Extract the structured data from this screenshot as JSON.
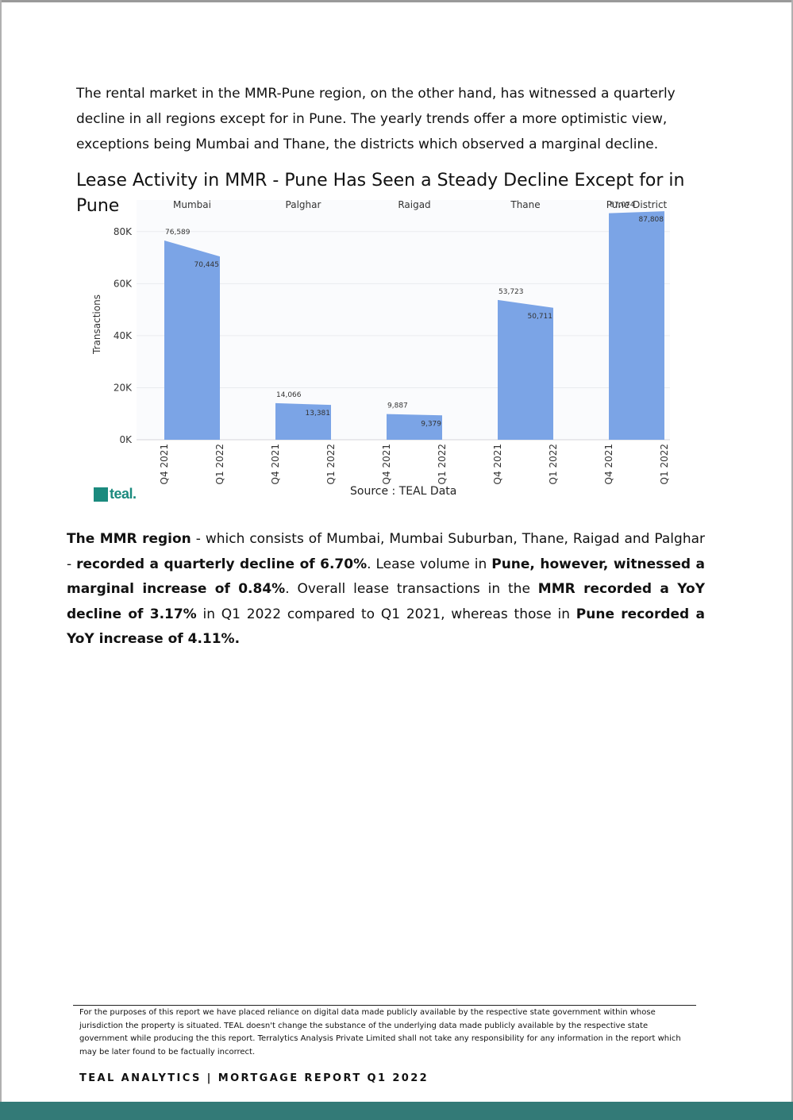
{
  "intro_text": "The rental market in the MMR-Pune region, on the other hand, has witnessed a quarterly decline in all regions except for in Pune. The yearly trends offer a more optimistic view, exceptions being Mumbai and Thane, the districts which observed a marginal decline.",
  "chart": {
    "title": "Lease Activity in MMR - Pune Has Seen a Steady Decline Except for in Pune",
    "source": "Source : TEAL Data",
    "logo_text": "teal.",
    "bar_color": "#7ba4e6"
  },
  "chart_data": {
    "type": "area",
    "title": "Lease Activity in MMR - Pune Has Seen a Steady Decline Except for in Pune",
    "ylabel": "Transactions",
    "ylim": [
      0,
      90000
    ],
    "y_ticks": [
      "0K",
      "20K",
      "40K",
      "60K",
      "80K"
    ],
    "y_tick_values": [
      0,
      20000,
      40000,
      60000,
      80000
    ],
    "x_tick_labels": [
      "Q4 2021",
      "Q1 2022"
    ],
    "grid": true,
    "panels": [
      {
        "name": "Mumbai",
        "values": [
          76589,
          70445
        ],
        "labels": [
          "76,589",
          "70,445"
        ]
      },
      {
        "name": "Palghar",
        "values": [
          14066,
          13381
        ],
        "labels": [
          "14,066",
          "13,381"
        ]
      },
      {
        "name": "Raigad",
        "values": [
          9887,
          9379
        ],
        "labels": [
          "9,887",
          "9,379"
        ]
      },
      {
        "name": "Thane",
        "values": [
          53723,
          50711
        ],
        "labels": [
          "53,723",
          "50,711"
        ]
      },
      {
        "name": "Pune District",
        "values": [
          87074,
          87808
        ],
        "labels": [
          "87,074",
          "87,808"
        ]
      }
    ]
  },
  "body": {
    "p1_bold": "The MMR region",
    "p1_text": " - which consists of Mumbai, Mumbai Suburban, Thane, Raigad and Palghar - ",
    "p2_bold": "recorded a quarterly decline of 6.70%",
    "p2_text": ". Lease volume in ",
    "p3_bold": "Pune, however, witnessed a marginal increase of 0.84%",
    "p3_text": ". Overall lease transactions in the ",
    "p4_bold": "MMR recorded a YoY decline of 3.17%",
    "p4_text": " in Q1 2022 compared to Q1 2021, whereas those in ",
    "p5_bold": "Pune recorded a YoY increase of 4.11%."
  },
  "footnote": "For the purposes of this report we have placed reliance on digital data made publicly available by the respective state government within whose jurisdiction the property is situated. TEAL doesn't change the substance of the underlying data made publicly available by the respective state government while producing the this report. Terralytics Analysis Private Limited shall not take any responsibility for any information in the report which may be later found to be factually incorrect.",
  "footer_label": "TEAL ANALYTICS | MORTGAGE REPORT Q1 2022",
  "colors": {
    "footer_bar": "#337a77",
    "logo": "#1b8a7e"
  }
}
